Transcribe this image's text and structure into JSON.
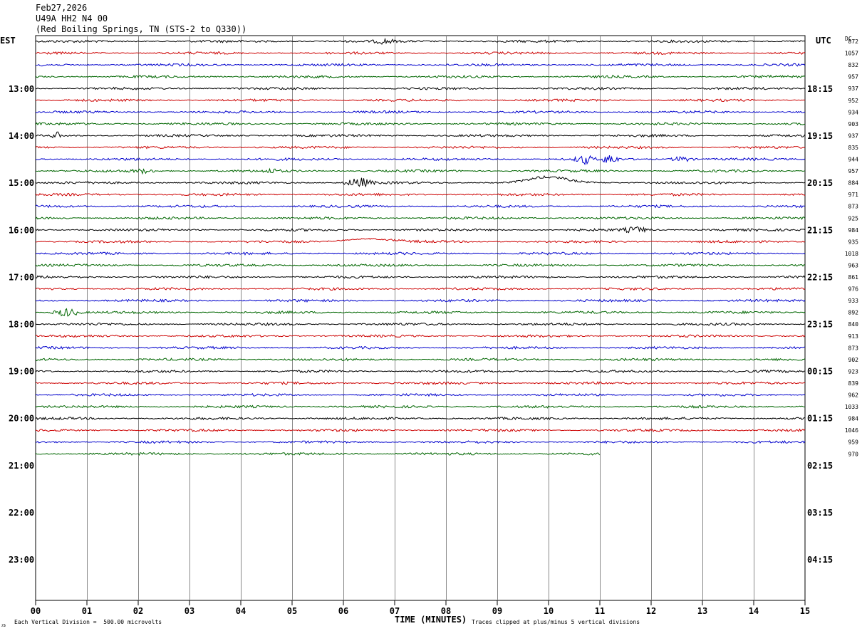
{
  "header": {
    "date": "Feb27,2026",
    "station": "U49A HH2 N4 00",
    "location": "(Red Boiling Springs, TN (STS-2 to Q330))"
  },
  "labels": {
    "left_tz": "EST",
    "right_tz": "UTC",
    "dc": "DC",
    "x_title": "TIME (MINUTES)",
    "division_note": "Each Vertical Division =  500.00 microvolts",
    "clip_note": "Traces clipped at plus/minus 5 vertical divisions",
    "corner_mark": "ᴊs"
  },
  "chart_data": {
    "type": "line",
    "title": "",
    "xlabel": "TIME (MINUTES)",
    "ylabel": "",
    "xlim": [
      0,
      15
    ],
    "x_ticks": [
      "00",
      "01",
      "02",
      "03",
      "04",
      "05",
      "06",
      "07",
      "08",
      "09",
      "10",
      "11",
      "12",
      "13",
      "14",
      "15"
    ],
    "grid": true,
    "trace_colors": [
      "#000000",
      "#cc0000",
      "#0000cc",
      "#006600"
    ],
    "row_labels_left": [
      "13:00",
      "14:00",
      "15:00",
      "16:00",
      "17:00",
      "18:00",
      "19:00",
      "20:00",
      "21:00",
      "22:00",
      "23:00"
    ],
    "row_labels_right": [
      "18:15",
      "19:15",
      "20:15",
      "21:15",
      "22:15",
      "23:15",
      "00:15",
      "01:15",
      "02:15",
      "03:15",
      "04:15"
    ],
    "dc_values": [
      "872",
      "1057",
      "832",
      "957",
      "937",
      "952",
      "934",
      "903",
      "937",
      "835",
      "944",
      "957",
      "884",
      "971",
      "873",
      "925",
      "984",
      "935",
      "1018",
      "963",
      "861",
      "976",
      "933",
      "892",
      "840",
      "913",
      "873",
      "902",
      "923",
      "839",
      "962",
      "1033",
      "984",
      "1046",
      "959",
      "970"
    ],
    "last_trace_end_minute": 11
  }
}
